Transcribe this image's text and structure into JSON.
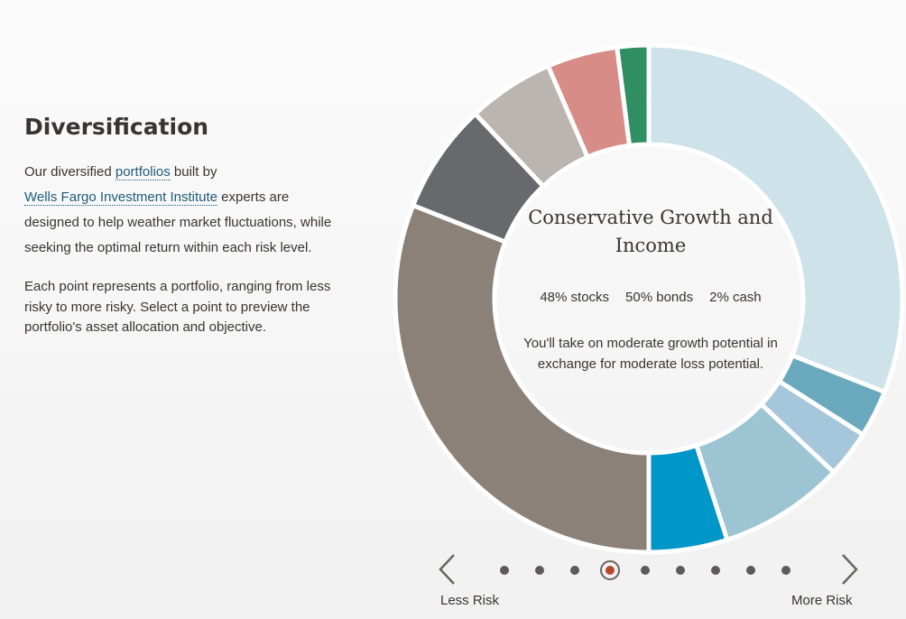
{
  "intro": {
    "title": "Diversification",
    "p1_before": "Our diversified ",
    "p1_link1": "portfolios",
    "p1_mid": " built by",
    "p1_link2": "Wells Fargo Investment Institute",
    "p1_after": " experts are designed to help weather market fluctuations, while seeking the optimal return within each risk level.",
    "p2": "Each point represents a portfolio, ranging from less risky to more risky. Select a point to preview the portfolio's asset allocation and objective."
  },
  "portfolio": {
    "name": "Conservative Growth and Income",
    "stocks": "48% stocks",
    "bonds": "50% bonds",
    "cash": "2% cash",
    "objective": "You'll take on moderate growth potential in exchange for moderate loss potential."
  },
  "allocation": [
    {
      "share": 31.0,
      "color": "#cde2e9"
    },
    {
      "share": 3.0,
      "color": "#6aa8bd"
    },
    {
      "share": 3.0,
      "color": "#a6c6db"
    },
    {
      "share": 8.0,
      "color": "#9cc4d2"
    },
    {
      "share": 5.0,
      "color": "#0096c8"
    },
    {
      "share": 31.0,
      "color": "#8b8179"
    },
    {
      "share": 7.0,
      "color": "#68696c"
    },
    {
      "share": 5.5,
      "color": "#bab5b0"
    },
    {
      "share": 4.5,
      "color": "#d88c87"
    },
    {
      "share": 2.0,
      "color": "#2f8f62"
    }
  ],
  "navigation": {
    "less_risk": "Less Risk",
    "more_risk": "More Risk",
    "point_count": 9,
    "selected_point": 4
  },
  "colors": {
    "accent": "#b5482c",
    "link": "#1e5b7a",
    "text": "#3b3331"
  }
}
